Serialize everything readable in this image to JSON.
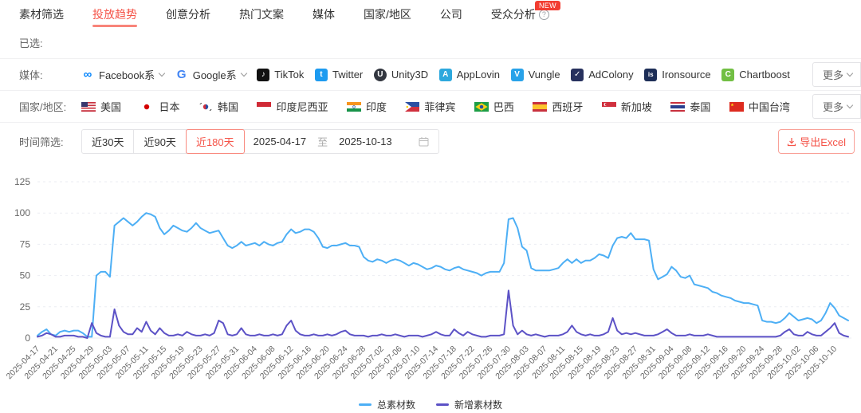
{
  "tabs": {
    "items": [
      {
        "label": "素材筛选",
        "active": false
      },
      {
        "label": "投放趋势",
        "active": true
      },
      {
        "label": "创意分析",
        "active": false
      },
      {
        "label": "热门文案",
        "active": false
      },
      {
        "label": "媒体",
        "active": false
      },
      {
        "label": "国家/地区",
        "active": false
      },
      {
        "label": "公司",
        "active": false
      },
      {
        "label": "受众分析",
        "active": false,
        "help_icon": true,
        "badge": "NEW"
      }
    ]
  },
  "filters": {
    "selected_label": "已选:",
    "media": {
      "label": "媒体:",
      "more_label": "更多",
      "items": [
        {
          "name": "Facebook系",
          "icon": "meta-icon",
          "dropdown": true
        },
        {
          "name": "Google系",
          "icon": "google-icon",
          "dropdown": true
        },
        {
          "name": "TikTok",
          "icon": "tiktok-icon",
          "dropdown": false
        },
        {
          "name": "Twitter",
          "icon": "twitter-icon",
          "dropdown": false
        },
        {
          "name": "Unity3D",
          "icon": "unity-icon",
          "dropdown": false
        },
        {
          "name": "AppLovin",
          "icon": "applovin-icon",
          "dropdown": false
        },
        {
          "name": "Vungle",
          "icon": "vungle-icon",
          "dropdown": false
        },
        {
          "name": "AdColony",
          "icon": "adcolony-icon",
          "dropdown": false
        },
        {
          "name": "Ironsource",
          "icon": "ironsource-icon",
          "dropdown": false
        },
        {
          "name": "Chartboost",
          "icon": "chartboost-icon",
          "dropdown": false
        }
      ]
    },
    "region": {
      "label": "国家/地区:",
      "more_label": "更多",
      "items": [
        {
          "name": "美国",
          "flag": "us"
        },
        {
          "name": "日本",
          "flag": "jp"
        },
        {
          "name": "韩国",
          "flag": "kr"
        },
        {
          "name": "印度尼西亚",
          "flag": "id"
        },
        {
          "name": "印度",
          "flag": "in"
        },
        {
          "name": "菲律宾",
          "flag": "ph"
        },
        {
          "name": "巴西",
          "flag": "br"
        },
        {
          "name": "西班牙",
          "flag": "es"
        },
        {
          "name": "新加坡",
          "flag": "sg"
        },
        {
          "name": "泰国",
          "flag": "th"
        },
        {
          "name": "中国台湾",
          "flag": "cn"
        }
      ]
    },
    "time": {
      "label": "时间筛选:",
      "quick_ranges": [
        {
          "label": "近30天",
          "active": false
        },
        {
          "label": "近90天",
          "active": false
        },
        {
          "label": "近180天",
          "active": true
        }
      ],
      "start_date": "2025-04-17",
      "range_separator": "至",
      "end_date": "2025-10-13"
    },
    "export_label": "导出Excel"
  },
  "chart_data": {
    "type": "line",
    "title": "",
    "xlabel": "",
    "ylabel": "",
    "ylim": [
      0,
      125
    ],
    "y_ticks": [
      0,
      25,
      50,
      75,
      100,
      125
    ],
    "grid": "horizontal-dashed",
    "legend_position": "bottom-center",
    "start_date": "2025-04-17",
    "end_date": "2025-10-13",
    "x_step_days": 1,
    "x_tick_labels": [
      "2025-04-17",
      "2025-04-21",
      "2025-04-25",
      "2025-04-29",
      "2025-05-03",
      "2025-05-07",
      "2025-05-11",
      "2025-05-15",
      "2025-05-19",
      "2025-05-23",
      "2025-05-27",
      "2025-05-31",
      "2025-06-04",
      "2025-06-08",
      "2025-06-12",
      "2025-06-16",
      "2025-06-20",
      "2025-06-24",
      "2025-06-28",
      "2025-07-02",
      "2025-07-06",
      "2025-07-10",
      "2025-07-14",
      "2025-07-18",
      "2025-07-22",
      "2025-07-26",
      "2025-07-30",
      "2025-08-03",
      "2025-08-07",
      "2025-08-11",
      "2025-08-15",
      "2025-08-19",
      "2025-08-23",
      "2025-08-27",
      "2025-08-31",
      "2025-09-04",
      "2025-09-08",
      "2025-09-12",
      "2025-09-16",
      "2025-09-20",
      "2025-09-24",
      "2025-09-28",
      "2025-10-02",
      "2025-10-06",
      "2025-10-10"
    ],
    "series": [
      {
        "name": "总素材数",
        "color": "#4daff5",
        "values": [
          2,
          5,
          7,
          3,
          2,
          5,
          6,
          5,
          6,
          6,
          4,
          1,
          1,
          50,
          53,
          53,
          49,
          90,
          93,
          96,
          93,
          90,
          93,
          97,
          100,
          99,
          97,
          88,
          83,
          86,
          90,
          88,
          86,
          85,
          88,
          92,
          88,
          86,
          84,
          85,
          86,
          80,
          74,
          72,
          74,
          77,
          74,
          75,
          76,
          74,
          77,
          75,
          74,
          76,
          77,
          83,
          87,
          84,
          85,
          87,
          87,
          85,
          80,
          73,
          72,
          74,
          74,
          75,
          76,
          74,
          74,
          73,
          65,
          62,
          61,
          63,
          62,
          60,
          62,
          63,
          62,
          60,
          58,
          60,
          59,
          57,
          55,
          56,
          58,
          57,
          55,
          54,
          56,
          57,
          55,
          54,
          53,
          52,
          50,
          52,
          53,
          53,
          53,
          60,
          95,
          96,
          88,
          73,
          70,
          56,
          54,
          54,
          54,
          54,
          55,
          56,
          60,
          63,
          60,
          63,
          60,
          62,
          62,
          64,
          67,
          66,
          64,
          74,
          80,
          81,
          80,
          84,
          79,
          79,
          79,
          78,
          55,
          47,
          49,
          51,
          57,
          54,
          49,
          48,
          50,
          43,
          42,
          41,
          40,
          37,
          36,
          34,
          33,
          32,
          30,
          29,
          28,
          28,
          27,
          26,
          14,
          13,
          13,
          12,
          13,
          16,
          20,
          17,
          14,
          15,
          16,
          15,
          12,
          14,
          20,
          28,
          24,
          18,
          16,
          14
        ]
      },
      {
        "name": "新增素材数",
        "color": "#5c52c6",
        "values": [
          1,
          2,
          4,
          3,
          1,
          1,
          2,
          2,
          2,
          1,
          1,
          0,
          12,
          4,
          2,
          1,
          1,
          23,
          10,
          5,
          3,
          3,
          8,
          5,
          13,
          6,
          3,
          8,
          4,
          2,
          2,
          3,
          2,
          5,
          3,
          2,
          2,
          3,
          2,
          4,
          14,
          12,
          3,
          2,
          3,
          8,
          3,
          2,
          2,
          3,
          2,
          2,
          3,
          2,
          3,
          10,
          14,
          6,
          3,
          2,
          2,
          3,
          2,
          2,
          3,
          2,
          3,
          5,
          6,
          3,
          2,
          2,
          2,
          1,
          2,
          2,
          3,
          2,
          2,
          3,
          2,
          1,
          2,
          2,
          2,
          1,
          2,
          3,
          5,
          3,
          2,
          2,
          7,
          4,
          2,
          5,
          3,
          2,
          1,
          1,
          2,
          2,
          2,
          3,
          38,
          10,
          3,
          6,
          3,
          2,
          3,
          2,
          1,
          2,
          2,
          2,
          3,
          5,
          10,
          5,
          3,
          2,
          3,
          2,
          2,
          3,
          5,
          16,
          6,
          3,
          4,
          3,
          4,
          3,
          2,
          2,
          2,
          3,
          5,
          7,
          4,
          2,
          2,
          2,
          3,
          2,
          2,
          2,
          3,
          2,
          1,
          1,
          1,
          1,
          1,
          1,
          1,
          1,
          1,
          1,
          1,
          1,
          1,
          1,
          2,
          5,
          7,
          3,
          2,
          2,
          5,
          3,
          2,
          2,
          5,
          8,
          12,
          4,
          2,
          1
        ]
      }
    ]
  }
}
